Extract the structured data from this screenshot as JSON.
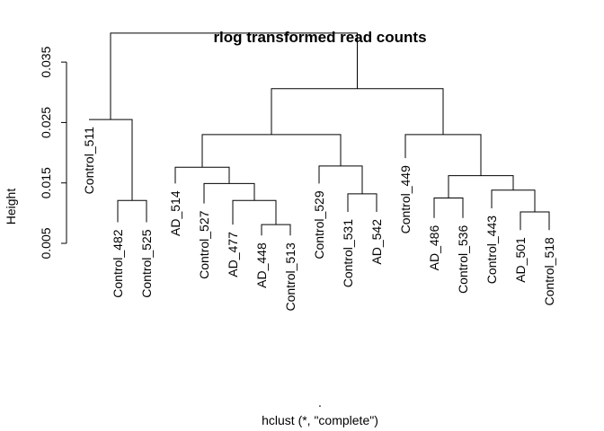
{
  "chart_data": {
    "type": "dendrogram",
    "title": "rlog transformed read counts",
    "ylabel": "Height",
    "xlabel": "hclust (*, \"complete\")",
    "sublabel": ".",
    "yticks": [
      0.005,
      0.015,
      0.025,
      0.035
    ],
    "ylim": [
      0.005,
      0.04
    ],
    "colors": {
      "line": "#000000",
      "background": "#ffffff"
    },
    "leaves": [
      {
        "label": "Control_511",
        "base": 0.0255
      },
      {
        "label": "Control_482",
        "base": 0.0085
      },
      {
        "label": "Control_525",
        "base": 0.0085
      },
      {
        "label": "AD_514",
        "base": 0.0149
      },
      {
        "label": "Control_527",
        "base": 0.0116
      },
      {
        "label": "AD_477",
        "base": 0.0081
      },
      {
        "label": "AD_448",
        "base": 0.0063
      },
      {
        "label": "Control_513",
        "base": 0.0063
      },
      {
        "label": "Control_529",
        "base": 0.0149
      },
      {
        "label": "Control_531",
        "base": 0.0102
      },
      {
        "label": "AD_542",
        "base": 0.0102
      },
      {
        "label": "Control_449",
        "base": 0.0191
      },
      {
        "label": "AD_486",
        "base": 0.0092
      },
      {
        "label": "Control_536",
        "base": 0.0092
      },
      {
        "label": "Control_443",
        "base": 0.0108
      },
      {
        "label": "AD_501",
        "base": 0.0072
      },
      {
        "label": "Control_518",
        "base": 0.0072
      }
    ],
    "merges": [
      {
        "left": "Control_482",
        "right": "Control_525",
        "height": 0.0121
      },
      {
        "left": "Control_511",
        "right": 1,
        "height": 0.0255
      },
      {
        "left": "AD_448",
        "right": "Control_513",
        "height": 0.0081
      },
      {
        "left": "AD_477",
        "right": 3,
        "height": 0.0121
      },
      {
        "left": "Control_527",
        "right": 4,
        "height": 0.0149
      },
      {
        "left": "AD_514",
        "right": 5,
        "height": 0.0176
      },
      {
        "left": "Control_531",
        "right": "AD_542",
        "height": 0.0132
      },
      {
        "left": "Control_529",
        "right": 7,
        "height": 0.0178
      },
      {
        "left": 6,
        "right": 8,
        "height": 0.023
      },
      {
        "left": "AD_486",
        "right": "Control_536",
        "height": 0.0125
      },
      {
        "left": "AD_501",
        "right": "Control_518",
        "height": 0.0102
      },
      {
        "left": "Control_443",
        "right": 11,
        "height": 0.0138
      },
      {
        "left": 10,
        "right": 12,
        "height": 0.0162
      },
      {
        "left": "Control_449",
        "right": 13,
        "height": 0.023
      },
      {
        "left": 9,
        "right": 14,
        "height": 0.0306
      },
      {
        "left": 2,
        "right": 15,
        "height": 0.0398
      }
    ]
  }
}
